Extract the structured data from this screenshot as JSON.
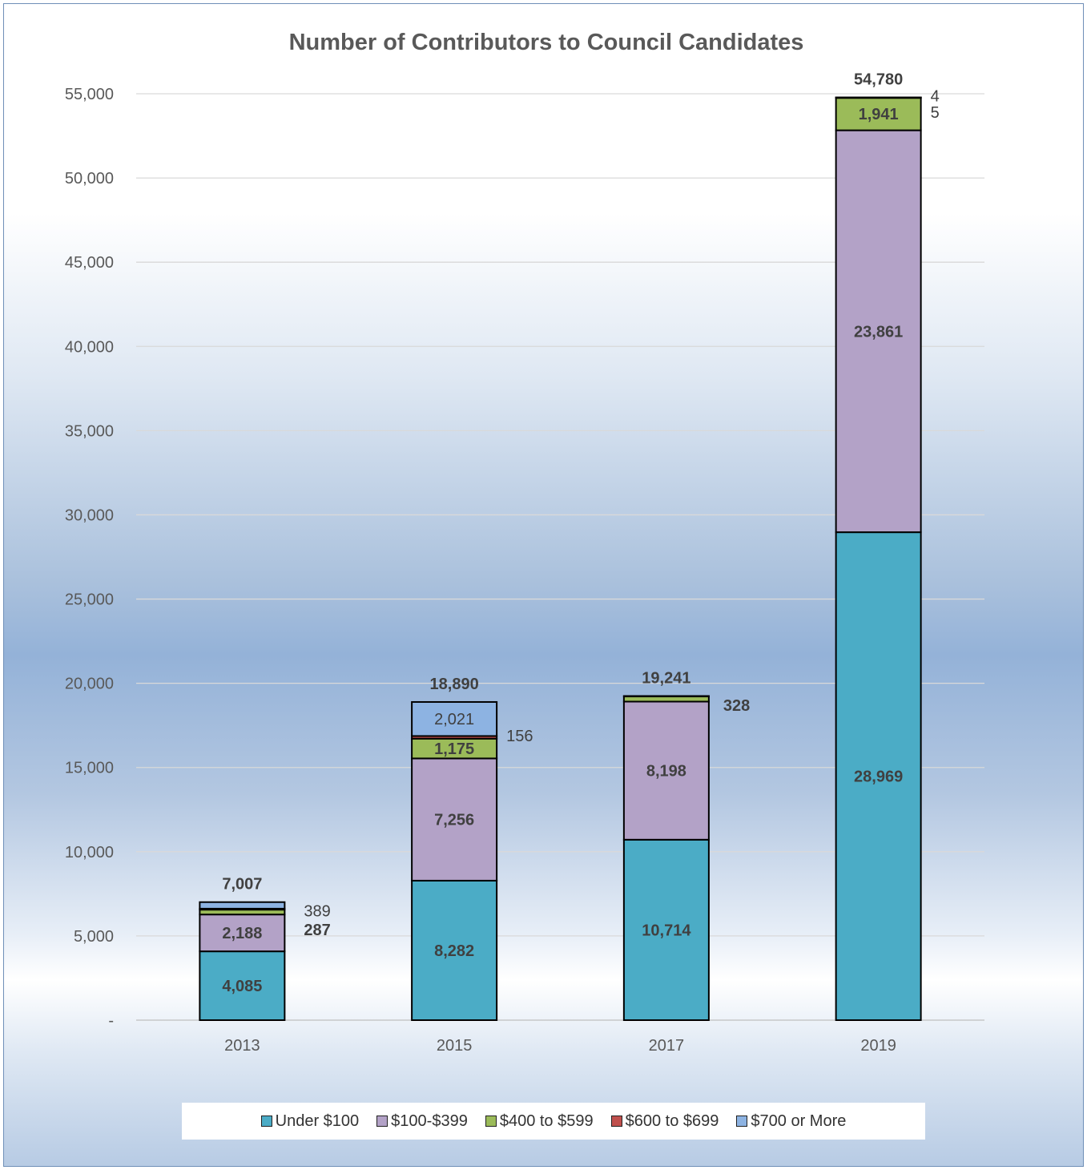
{
  "chart_data": {
    "type": "bar",
    "stacked": true,
    "title": "Number of Contributors to Council Candidates",
    "xlabel": "",
    "ylabel": "",
    "categories": [
      "2013",
      "2015",
      "2017",
      "2019"
    ],
    "ylim": [
      0,
      55000
    ],
    "yticks": [
      0,
      5000,
      10000,
      15000,
      20000,
      25000,
      30000,
      35000,
      40000,
      45000,
      50000,
      55000
    ],
    "ytick_labels": [
      "-",
      "5,000",
      "10,000",
      "15,000",
      "20,000",
      "25,000",
      "30,000",
      "35,000",
      "40,000",
      "45,000",
      "50,000",
      "55,000"
    ],
    "grid": "horizontal",
    "legend_position": "bottom",
    "series": [
      {
        "name": "Under $100",
        "color": "#4bacc6",
        "values": [
          4085,
          8282,
          10714,
          28969
        ],
        "labels": [
          "4,085",
          "8,282",
          "10,714",
          "28,969"
        ]
      },
      {
        "name": "$100-$399",
        "color": "#b3a2c7",
        "values": [
          2188,
          7256,
          8198,
          23861
        ],
        "labels": [
          "2,188",
          "7,256",
          "8,198",
          "23,861"
        ]
      },
      {
        "name": "$400 to $599",
        "color": "#9bbb59",
        "values": [
          287,
          1175,
          328,
          1941
        ],
        "labels": [
          "287",
          "1,175",
          "328",
          "1,941"
        ]
      },
      {
        "name": "$600 to $699",
        "color": "#c0504d",
        "values": [
          58,
          156,
          1,
          5
        ],
        "labels": [
          "",
          "156",
          "",
          "5"
        ]
      },
      {
        "name": "$700 or More",
        "color": "#8db3e2",
        "values": [
          389,
          2021,
          0,
          4
        ],
        "labels": [
          "389",
          "2,021",
          "",
          "4"
        ]
      }
    ],
    "totals": [
      "7,007",
      "18,890",
      "19,241",
      "54,780"
    ]
  }
}
